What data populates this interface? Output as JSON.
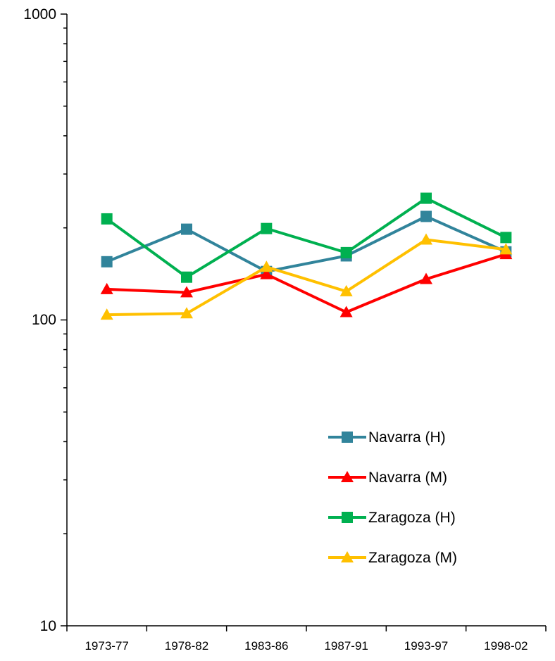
{
  "chart_data": {
    "type": "line",
    "y_scale": "log",
    "ylim": [
      10,
      1000
    ],
    "grid": false,
    "legend_position": "bottom-right",
    "categories": [
      "1973-77",
      "1978-82",
      "1983-86",
      "1987-91",
      "1993-97",
      "1998-02"
    ],
    "y_tick_labels": [
      "1000",
      "100",
      "10"
    ],
    "series": [
      {
        "name": "Navarra (H)",
        "color": "#31849B",
        "marker": "square",
        "values": [
          155,
          198,
          144,
          162,
          218,
          167
        ]
      },
      {
        "name": "Navarra (M)",
        "color": "#FF0000",
        "marker": "triangle",
        "values": [
          126,
          123,
          141,
          106,
          136,
          164
        ]
      },
      {
        "name": "Zaragoza (H)",
        "color": "#00B050",
        "marker": "square",
        "values": [
          214,
          138,
          199,
          166,
          250,
          186
        ]
      },
      {
        "name": "Zaragoza (M)",
        "color": "#FFC000",
        "marker": "triangle",
        "values": [
          104,
          105,
          149,
          124,
          183,
          170
        ]
      }
    ]
  }
}
